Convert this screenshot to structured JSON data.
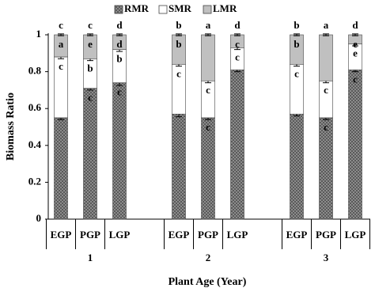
{
  "chart_data": {
    "type": "stacked_bar",
    "x_label": "Plant Age  (Year)",
    "y_label": "Biomass Ratio",
    "categories": [
      "EGP",
      "PGP",
      "LGP",
      "EGP",
      "PGP",
      "LGP",
      "EGP",
      "PGP",
      "LGP"
    ],
    "groups": [
      "1",
      "2",
      "3"
    ],
    "ylim": [
      0,
      1
    ],
    "yticks": [
      0,
      0.2,
      0.4,
      0.6,
      0.8,
      1
    ],
    "legend": "top",
    "series": [
      {
        "name": "RMR",
        "color": "#6e6e6e",
        "pattern": "crosshatch",
        "values": [
          0.55,
          0.71,
          0.74,
          0.57,
          0.55,
          0.81,
          0.57,
          0.55,
          0.81
        ],
        "errors": [
          0.01,
          0.01,
          0.015,
          0.015,
          0.01,
          0.01,
          0.01,
          0.01,
          0.01
        ],
        "labels": [
          null,
          "c",
          "c",
          null,
          "c",
          null,
          null,
          "c",
          "c"
        ]
      },
      {
        "name": "SMR",
        "color": "#ffffff",
        "values": [
          0.33,
          0.16,
          0.18,
          0.27,
          0.2,
          0.12,
          0.27,
          0.2,
          0.14
        ],
        "errors": [
          0.01,
          0.01,
          0.01,
          0.01,
          0.01,
          0.01,
          0.01,
          0.01,
          0.01
        ],
        "labels": [
          "c",
          "b",
          "b",
          "c",
          "c",
          "c",
          "c",
          "c",
          "e"
        ]
      },
      {
        "name": "LMR",
        "color": "#c0c0c0",
        "values": [
          0.12,
          0.13,
          0.08,
          0.16,
          0.25,
          0.07,
          0.16,
          0.25,
          0.05
        ],
        "errors": [
          0.005,
          0.005,
          0.005,
          0.005,
          0.005,
          0.005,
          0.005,
          0.005,
          0.005
        ],
        "labels": [
          "a",
          "e",
          "d",
          "b",
          null,
          "c",
          "b",
          null,
          "e"
        ]
      }
    ],
    "top_labels": [
      "c",
      "c",
      "d",
      "b",
      "a",
      "d",
      "b",
      "a",
      "d"
    ]
  }
}
